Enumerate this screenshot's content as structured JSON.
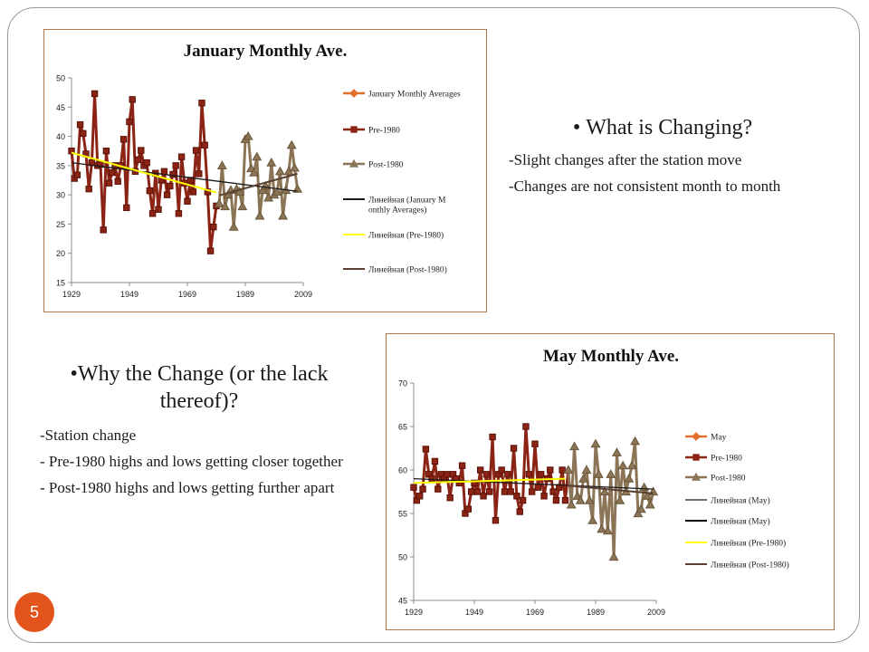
{
  "slide": {
    "page_number": "5"
  },
  "changing": {
    "heading": "What is Changing?",
    "lines": [
      "-Slight changes after the station move",
      "-Changes are not consistent month to month"
    ]
  },
  "why": {
    "heading": "Why the Change (or the lack thereof)?",
    "lines": [
      "-Station change",
      "- Pre-1980 highs and lows getting closer together",
      "- Post-1980 highs and lows getting further apart"
    ]
  },
  "chart_data": [
    {
      "type": "line",
      "title": "January Monthly Ave.",
      "xlabel": "",
      "ylabel": "",
      "x_ticks": [
        "1929",
        "1949",
        "1969",
        "1989",
        "2009"
      ],
      "y_ticks": [
        "50",
        "45",
        "40",
        "35",
        "30",
        "25",
        "20",
        "15"
      ],
      "xlim": [
        1929,
        2009
      ],
      "ylim": [
        15,
        50
      ],
      "grid": false,
      "legend_position": "right",
      "colors": {
        "axis": "#8c8c8c",
        "main": "#e0702a",
        "pre": "#8b2414",
        "post": "#8b7556",
        "trend_all": "#1a1a1a",
        "trend_pre": "#ffff00",
        "trend_post": "#5a4030"
      },
      "legend": [
        {
          "label": "January Monthly Averages",
          "style": "diamond",
          "color": "#e0702a"
        },
        {
          "label": "Pre-1980",
          "style": "square",
          "color": "#8b2414"
        },
        {
          "label": "Post-1980",
          "style": "triangle",
          "color": "#8b7556"
        },
        {
          "label": "Линейная (January Monthly Averages)",
          "style": "line",
          "color": "#1a1a1a"
        },
        {
          "label": "Линейная (Pre-1980)",
          "style": "line",
          "color": "#ffff00"
        },
        {
          "label": "Линейная (Post-1980)",
          "style": "line",
          "color": "#5a4030"
        }
      ],
      "series": [
        {
          "name": "Pre-1980",
          "marker": "square",
          "x": [
            1929,
            1930,
            1931,
            1932,
            1933,
            1934,
            1935,
            1936,
            1937,
            1938,
            1939,
            1940,
            1941,
            1942,
            1943,
            1944,
            1945,
            1946,
            1947,
            1948,
            1949,
            1950,
            1951,
            1952,
            1953,
            1954,
            1955,
            1956,
            1957,
            1958,
            1959,
            1960,
            1961,
            1962,
            1963,
            1964,
            1965,
            1966,
            1967,
            1968,
            1969,
            1970,
            1971,
            1972,
            1973,
            1974,
            1975,
            1976,
            1977,
            1978,
            1979
          ],
          "y": [
            37.5,
            32.8,
            33.4,
            42.0,
            40.5,
            37.0,
            31.0,
            35.5,
            47.3,
            35.0,
            35.2,
            24.0,
            37.5,
            32.0,
            33.8,
            35.0,
            32.3,
            35.0,
            39.5,
            27.8,
            42.5,
            46.3,
            34.0,
            36.0,
            37.6,
            35.0,
            35.5,
            30.7,
            26.8,
            33.7,
            27.5,
            32.5,
            34.0,
            30.0,
            31.5,
            33.5,
            35.0,
            26.8,
            36.5,
            32.0,
            28.9,
            32.5,
            30.5,
            37.6,
            33.6,
            45.7,
            38.5,
            30.5,
            20.4,
            24.5,
            28.1
          ]
        },
        {
          "name": "Post-1980",
          "marker": "triangle",
          "x": [
            1980,
            1981,
            1982,
            1983,
            1984,
            1985,
            1986,
            1987,
            1988,
            1989,
            1990,
            1991,
            1992,
            1993,
            1994,
            1995,
            1996,
            1997,
            1998,
            1999,
            2000,
            2001,
            2002,
            2003,
            2004,
            2005,
            2006,
            2007
          ],
          "y": [
            28.5,
            35.0,
            28.0,
            30.0,
            30.8,
            24.5,
            31.0,
            30.5,
            28.0,
            39.5,
            40.0,
            34.5,
            33.8,
            36.5,
            26.4,
            30.8,
            31.5,
            29.5,
            35.5,
            30.0,
            30.5,
            34.0,
            26.4,
            30.8,
            34.0,
            38.5,
            34.6,
            31.0
          ]
        }
      ],
      "trends": [
        {
          "name": "Линейная (January Monthly Averages)",
          "x": [
            1929,
            2007
          ],
          "y": [
            35.5,
            30.6
          ]
        },
        {
          "name": "Линейная (Pre-1980)",
          "x": [
            1929,
            1979
          ],
          "y": [
            37.2,
            30.4
          ]
        },
        {
          "name": "Линейная (Post-1980)",
          "x": [
            1980,
            2007
          ],
          "y": [
            29.9,
            33.6
          ]
        }
      ]
    },
    {
      "type": "line",
      "title": "May Monthly Ave.",
      "xlabel": "",
      "ylabel": "",
      "x_ticks": [
        "1929",
        "1949",
        "1969",
        "1989",
        "2009"
      ],
      "y_ticks": [
        "70",
        "65",
        "60",
        "55",
        "50",
        "45"
      ],
      "xlim": [
        1929,
        2009
      ],
      "ylim": [
        45,
        70
      ],
      "grid": false,
      "legend_position": "right",
      "colors": {
        "axis": "#8c8c8c",
        "main": "#e0702a",
        "pre": "#8b2414",
        "post": "#8b7556",
        "trend_all": "#1a1a1a",
        "trend_pre": "#ffff00",
        "trend_post": "#5a4030"
      },
      "legend": [
        {
          "label": "May",
          "style": "diamond",
          "color": "#e0702a"
        },
        {
          "label": "Pre-1980",
          "style": "square",
          "color": "#8b2414"
        },
        {
          "label": "Post-1980",
          "style": "triangle",
          "color": "#8b7556"
        },
        {
          "label": "Линейная (May)",
          "style": "line-thin",
          "color": "#1a1a1a"
        },
        {
          "label": "Линейная (May)",
          "style": "line",
          "color": "#000000"
        },
        {
          "label": "Линейная (Pre-1980)",
          "style": "line",
          "color": "#ffff00"
        },
        {
          "label": "Линейная (Post-1980)",
          "style": "line",
          "color": "#5a4030"
        }
      ],
      "series": [
        {
          "name": "Pre-1980",
          "marker": "square",
          "x": [
            1929,
            1930,
            1931,
            1932,
            1933,
            1934,
            1935,
            1936,
            1937,
            1938,
            1939,
            1940,
            1941,
            1942,
            1943,
            1944,
            1945,
            1946,
            1947,
            1948,
            1949,
            1950,
            1951,
            1952,
            1953,
            1954,
            1955,
            1956,
            1957,
            1958,
            1959,
            1960,
            1961,
            1962,
            1963,
            1964,
            1965,
            1966,
            1967,
            1968,
            1969,
            1970,
            1971,
            1972,
            1973,
            1974,
            1975,
            1976,
            1977,
            1978,
            1979
          ],
          "y": [
            58.0,
            56.5,
            57.0,
            57.8,
            62.4,
            59.5,
            59.0,
            61.0,
            57.8,
            59.5,
            59.0,
            59.5,
            56.8,
            59.5,
            59.0,
            58.5,
            60.5,
            55.0,
            55.5,
            57.5,
            58.5,
            57.5,
            60.0,
            57.0,
            59.5,
            57.5,
            63.8,
            54.2,
            59.5,
            60.0,
            57.5,
            59.5,
            57.5,
            62.5,
            57.0,
            55.2,
            56.5,
            65.0,
            59.5,
            57.5,
            63.0,
            58.0,
            59.5,
            57.0,
            59.0,
            60.0,
            57.5,
            56.5,
            58.0,
            60.0,
            56.5
          ]
        },
        {
          "name": "Post-1980",
          "marker": "triangle",
          "x": [
            1980,
            1981,
            1982,
            1983,
            1984,
            1985,
            1986,
            1987,
            1988,
            1989,
            1990,
            1991,
            1992,
            1993,
            1994,
            1995,
            1996,
            1997,
            1998,
            1999,
            2000,
            2001,
            2002,
            2003,
            2004,
            2005,
            2006,
            2007,
            2008
          ],
          "y": [
            60.0,
            56.0,
            62.7,
            57.0,
            56.5,
            59.0,
            60.0,
            56.5,
            54.2,
            63.0,
            59.5,
            53.2,
            57.5,
            53.0,
            59.5,
            50.0,
            62.0,
            56.5,
            60.5,
            57.5,
            59.0,
            60.5,
            63.3,
            55.0,
            55.5,
            58.0,
            57.0,
            56.0,
            57.5
          ]
        }
      ],
      "trends": [
        {
          "name": "Линейная (May)",
          "x": [
            1929,
            2008
          ],
          "y": [
            59.0,
            57.8
          ]
        },
        {
          "name": "Линейная (Pre-1980)",
          "x": [
            1929,
            1979
          ],
          "y": [
            58.5,
            59.0
          ]
        },
        {
          "name": "Линейная (Post-1980)",
          "x": [
            1980,
            2008
          ],
          "y": [
            58.2,
            57.3
          ]
        }
      ]
    }
  ]
}
